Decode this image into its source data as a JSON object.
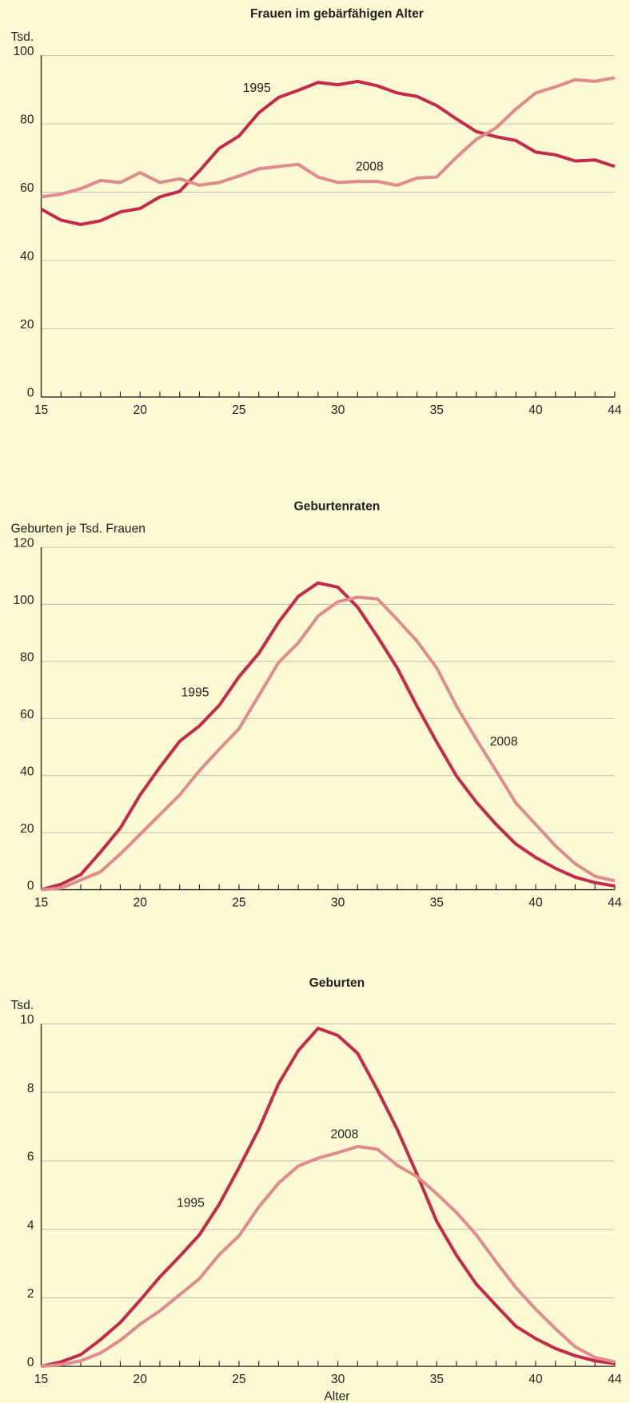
{
  "chart_data": [
    {
      "type": "line",
      "title": "Frauen im gebärfähigen Alter",
      "ylabel": "Tsd.",
      "x": [
        15,
        16,
        17,
        18,
        19,
        20,
        21,
        22,
        23,
        24,
        25,
        26,
        27,
        28,
        29,
        30,
        31,
        32,
        33,
        34,
        35,
        36,
        37,
        38,
        39,
        40,
        41,
        42,
        43,
        44
      ],
      "xlim": [
        15,
        44
      ],
      "xticks": [
        15,
        20,
        25,
        30,
        35,
        40,
        44
      ],
      "ylim": [
        0,
        100
      ],
      "yticks": [
        0,
        20,
        40,
        60,
        80,
        100
      ],
      "grid": true,
      "annotations": [
        "1995",
        "2008"
      ],
      "series": [
        {
          "name": "1995",
          "color": "#c42a4c",
          "values": [
            55,
            51.8,
            50.5,
            51.6,
            54.2,
            55.2,
            58.6,
            60.2,
            66.2,
            72.8,
            76.4,
            83.2,
            87.7,
            89.8,
            92.1,
            91.4,
            92.4,
            91.1,
            89,
            88,
            85.3,
            81.4,
            77.7,
            76.2,
            75.1,
            71.7,
            70.9,
            69.1,
            69.4,
            67.5
          ]
        },
        {
          "name": "2008",
          "color": "#de8c8e",
          "values": [
            58.6,
            59.4,
            61,
            63.4,
            62.8,
            65.7,
            62.8,
            63.9,
            62,
            62.8,
            64.7,
            66.8,
            67.5,
            68.1,
            64.4,
            62.8,
            63.1,
            63.1,
            62,
            64.1,
            64.4,
            70.2,
            75.4,
            78.8,
            84.3,
            89,
            90.8,
            92.9,
            92.4,
            93.5
          ]
        }
      ]
    },
    {
      "type": "line",
      "title": "Geburtenraten",
      "ylabel": "Geburten je Tsd. Frauen",
      "x": [
        15,
        16,
        17,
        18,
        19,
        20,
        21,
        22,
        23,
        24,
        25,
        26,
        27,
        28,
        29,
        30,
        31,
        32,
        33,
        34,
        35,
        36,
        37,
        38,
        39,
        40,
        41,
        42,
        43,
        44
      ],
      "xlim": [
        15,
        44
      ],
      "xticks": [
        15,
        20,
        25,
        30,
        35,
        40,
        44
      ],
      "ylim": [
        0,
        120
      ],
      "yticks": [
        0,
        20,
        40,
        60,
        80,
        100,
        120
      ],
      "grid": true,
      "annotations": [
        "1995",
        "2008"
      ],
      "series": [
        {
          "name": "1995",
          "color": "#c42a4c",
          "values": [
            0,
            1.9,
            5.3,
            13.2,
            21.6,
            33.2,
            42.9,
            52,
            57.4,
            64.6,
            74.6,
            82.8,
            93.7,
            102.8,
            107.5,
            106,
            99,
            88.7,
            77.7,
            64.3,
            51.7,
            39.8,
            30.7,
            22.9,
            16,
            11.3,
            7.5,
            4.4,
            2.5,
            1.3
          ]
        },
        {
          "name": "2008",
          "color": "#de8c8e",
          "values": [
            0,
            0.6,
            3.4,
            6.3,
            12.5,
            19.4,
            26.3,
            33.2,
            41.7,
            49.2,
            56.4,
            68,
            79.6,
            86.5,
            95.9,
            100.9,
            102.5,
            101.9,
            94.7,
            87.1,
            77.7,
            64.3,
            52.7,
            41.7,
            30.4,
            22.9,
            15.4,
            9.1,
            4.7,
            3.1
          ]
        }
      ]
    },
    {
      "type": "line",
      "title": "Geburten",
      "ylabel": "Tsd.",
      "xlabel": "Alter",
      "x": [
        15,
        16,
        17,
        18,
        19,
        20,
        21,
        22,
        23,
        24,
        25,
        26,
        27,
        28,
        29,
        30,
        31,
        32,
        33,
        34,
        35,
        36,
        37,
        38,
        39,
        40,
        41,
        42,
        43,
        44
      ],
      "xlim": [
        15,
        44
      ],
      "xticks": [
        15,
        20,
        25,
        30,
        35,
        40,
        44
      ],
      "ylim": [
        0,
        10
      ],
      "yticks": [
        0,
        2,
        4,
        6,
        8,
        10
      ],
      "grid": true,
      "annotations": [
        "1995",
        "2008"
      ],
      "series": [
        {
          "name": "1995",
          "color": "#c42a4c",
          "values": [
            0,
            0.13,
            0.34,
            0.78,
            1.28,
            1.93,
            2.61,
            3.21,
            3.84,
            4.73,
            5.8,
            6.92,
            8.25,
            9.22,
            9.87,
            9.66,
            9.14,
            8.07,
            6.92,
            5.61,
            4.23,
            3.24,
            2.4,
            1.78,
            1.17,
            0.81,
            0.52,
            0.31,
            0.16,
            0.08
          ]
        },
        {
          "name": "2008",
          "color": "#de8c8e",
          "values": [
            0,
            0.05,
            0.16,
            0.39,
            0.76,
            1.23,
            1.62,
            2.09,
            2.56,
            3.26,
            3.81,
            4.65,
            5.35,
            5.85,
            6.08,
            6.24,
            6.42,
            6.34,
            5.87,
            5.54,
            5.04,
            4.49,
            3.84,
            3.05,
            2.3,
            1.67,
            1.1,
            0.57,
            0.26,
            0.13
          ]
        }
      ]
    }
  ]
}
